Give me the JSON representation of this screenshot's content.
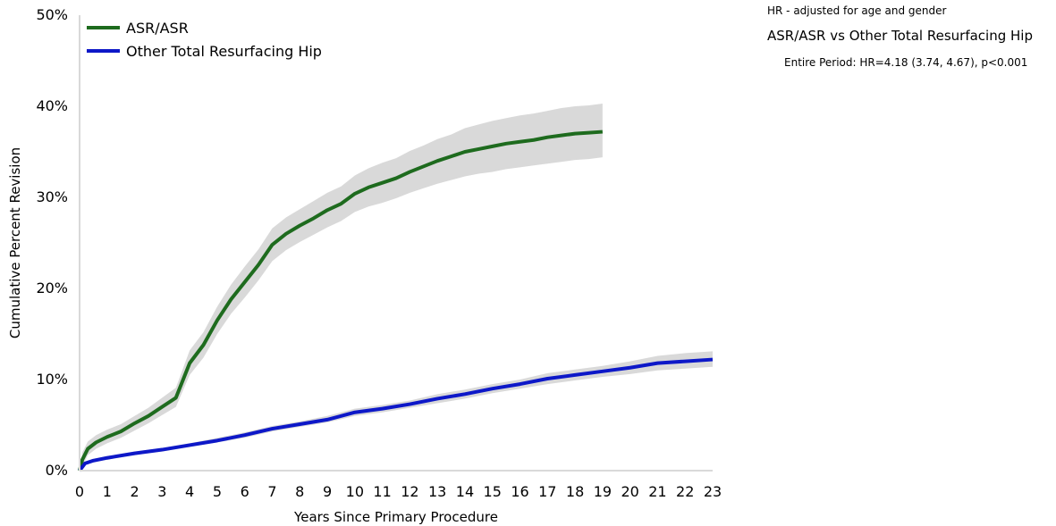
{
  "chart_data": {
    "type": "line",
    "xlabel": "Years Since Primary Procedure",
    "ylabel": "Cumulative Percent Revision",
    "xlim": [
      0,
      23
    ],
    "ylim": [
      0,
      50
    ],
    "x_ticks": [
      "0",
      "1",
      "2",
      "3",
      "4",
      "5",
      "6",
      "7",
      "8",
      "9",
      "10",
      "11",
      "12",
      "13",
      "14",
      "15",
      "16",
      "17",
      "18",
      "19",
      "20",
      "21",
      "22",
      "23"
    ],
    "y_ticks": [
      "0%",
      "10%",
      "20%",
      "30%",
      "40%",
      "50%"
    ],
    "grid": false,
    "legend_position": "top-left",
    "series": [
      {
        "name": "ASR/ASR",
        "color": "#1e6b1e",
        "band_color": "#d9d9d9",
        "x": [
          0,
          0.1,
          0.3,
          0.6,
          1,
          1.5,
          2,
          2.5,
          3,
          3.5,
          4,
          4.5,
          5,
          5.5,
          6,
          6.5,
          7,
          7.5,
          8,
          8.5,
          9,
          9.5,
          10,
          10.5,
          11,
          11.5,
          12,
          12.5,
          13,
          13.5,
          14,
          14.5,
          15,
          15.5,
          16,
          16.5,
          17,
          17.5,
          18,
          18.5,
          19
        ],
        "y": [
          0,
          1.2,
          2.4,
          3.1,
          3.7,
          4.3,
          5.2,
          6.0,
          7.0,
          8.0,
          11.8,
          13.8,
          16.5,
          18.8,
          20.7,
          22.6,
          24.8,
          26.0,
          26.9,
          27.7,
          28.6,
          29.3,
          30.4,
          31.1,
          31.6,
          32.1,
          32.8,
          33.4,
          34.0,
          34.5,
          35.0,
          35.3,
          35.6,
          35.9,
          36.1,
          36.3,
          36.6,
          36.8,
          37.0,
          37.1,
          37.2
        ],
        "lower": [
          0,
          0.5,
          1.7,
          2.4,
          3.0,
          3.6,
          4.4,
          5.2,
          6.1,
          7.0,
          10.5,
          12.4,
          15.0,
          17.2,
          19.0,
          20.9,
          23.0,
          24.2,
          25.1,
          25.9,
          26.7,
          27.4,
          28.4,
          29.0,
          29.4,
          29.9,
          30.5,
          31.0,
          31.5,
          31.9,
          32.3,
          32.6,
          32.8,
          33.1,
          33.3,
          33.5,
          33.7,
          33.9,
          34.1,
          34.2,
          34.4
        ],
        "upper": [
          0,
          2.0,
          3.2,
          3.9,
          4.5,
          5.1,
          6.0,
          6.9,
          8.0,
          9.1,
          13.2,
          15.2,
          18.0,
          20.4,
          22.4,
          24.3,
          26.6,
          27.8,
          28.7,
          29.6,
          30.5,
          31.2,
          32.4,
          33.2,
          33.8,
          34.3,
          35.1,
          35.7,
          36.4,
          36.9,
          37.6,
          38.0,
          38.4,
          38.7,
          39.0,
          39.2,
          39.5,
          39.8,
          40.0,
          40.1,
          40.3
        ]
      },
      {
        "name": "Other Total Resurfacing Hip",
        "color": "#0d18c8",
        "band_color": "#d9d9d9",
        "x": [
          0,
          0.2,
          0.5,
          1,
          2,
          3,
          4,
          5,
          6,
          7,
          8,
          9,
          10,
          11,
          12,
          13,
          14,
          15,
          16,
          17,
          18,
          19,
          20,
          21,
          22,
          23
        ],
        "y": [
          0,
          0.8,
          1.1,
          1.4,
          1.9,
          2.3,
          2.8,
          3.3,
          3.9,
          4.6,
          5.1,
          5.6,
          6.4,
          6.8,
          7.3,
          7.9,
          8.4,
          9.0,
          9.5,
          10.1,
          10.5,
          10.9,
          11.3,
          11.8,
          12.0,
          12.2
        ],
        "lower": [
          0,
          0.6,
          0.9,
          1.2,
          1.7,
          2.1,
          2.6,
          3.1,
          3.6,
          4.3,
          4.8,
          5.3,
          6.0,
          6.4,
          6.9,
          7.4,
          7.9,
          8.5,
          9.0,
          9.5,
          9.9,
          10.3,
          10.6,
          11.0,
          11.2,
          11.4
        ],
        "upper": [
          0,
          1.0,
          1.3,
          1.6,
          2.1,
          2.5,
          3.0,
          3.6,
          4.2,
          4.9,
          5.4,
          6.0,
          6.8,
          7.2,
          7.7,
          8.4,
          8.9,
          9.5,
          10.0,
          10.7,
          11.1,
          11.5,
          12.0,
          12.6,
          12.9,
          13.1
        ]
      }
    ]
  },
  "hr_note": "HR - adjusted for age and gender",
  "hr_comparison": "ASR/ASR vs Other Total Resurfacing Hip",
  "hr_period": "Entire Period: HR=4.18 (3.74, 4.67), p<0.001"
}
